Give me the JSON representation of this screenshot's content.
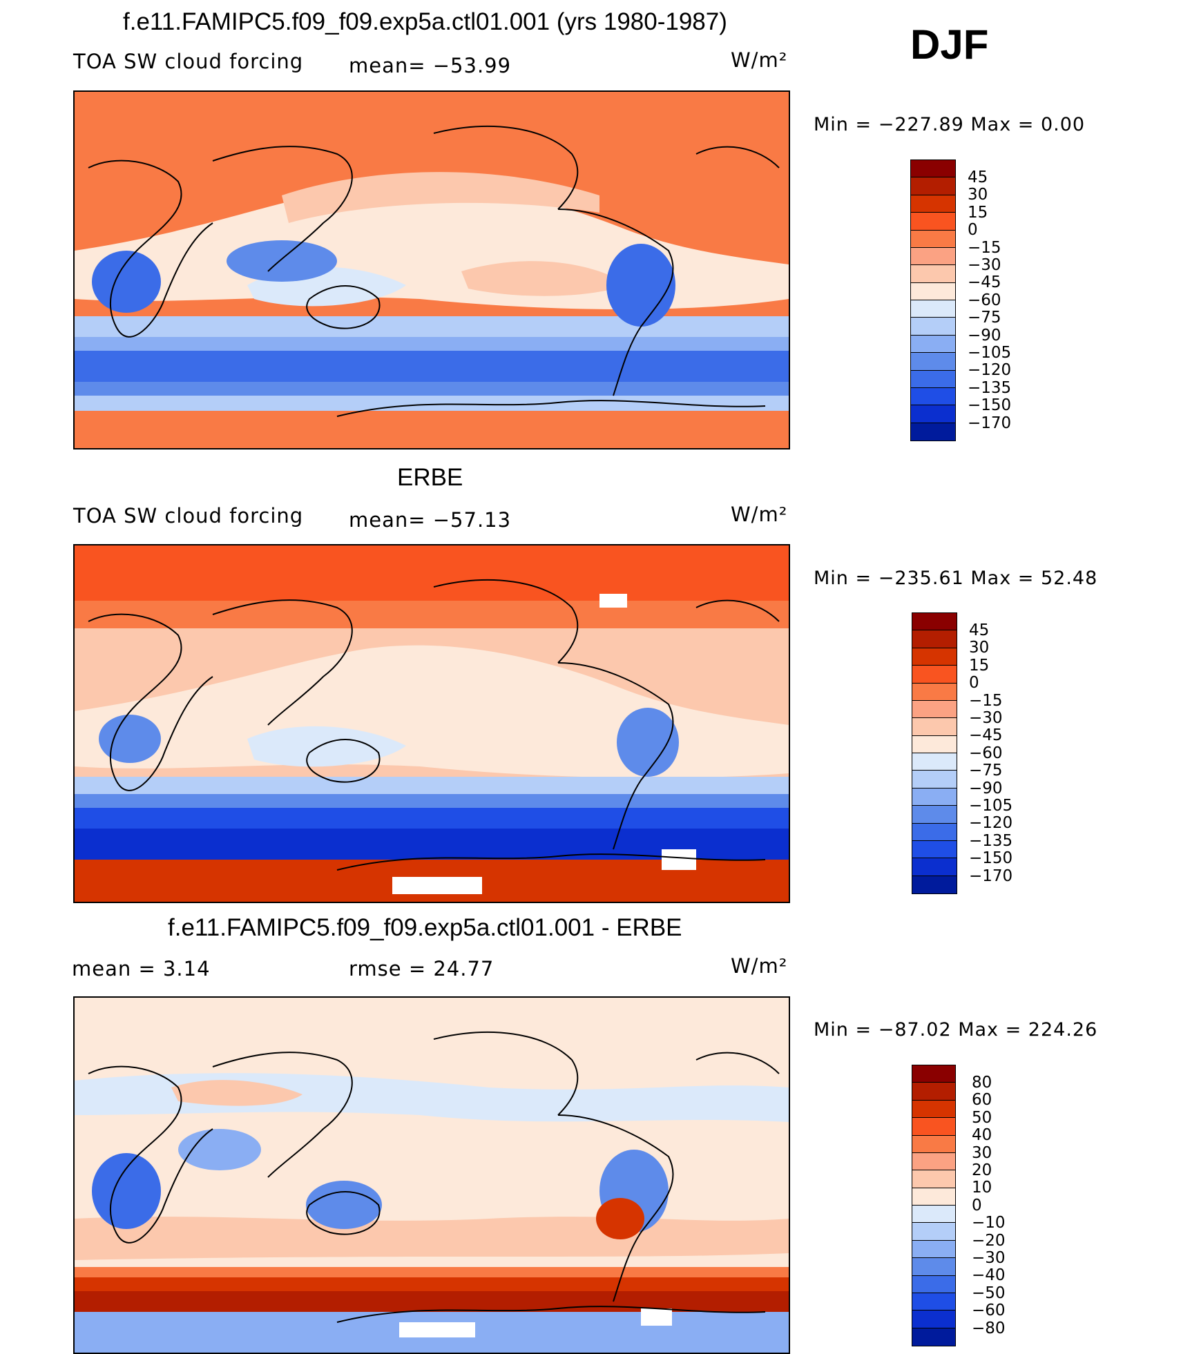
{
  "season": "DJF",
  "units": "W/m²",
  "colors": {
    "land_outline": "#000000",
    "palette_main": [
      "#8a0000",
      "#b31e00",
      "#d63400",
      "#f95420",
      "#f97a45",
      "#fba283",
      "#fcc8ad",
      "#fde9da",
      "#dbe9fa",
      "#b4cef8",
      "#8aaef3",
      "#5e8bea",
      "#3b6ce8",
      "#1f4ee6",
      "#0b2fcf",
      "#001b9c",
      "#000f6e"
    ],
    "palette_diff": [
      "#8a0000",
      "#b31e00",
      "#d63400",
      "#f95420",
      "#f97a45",
      "#fba283",
      "#fcc8ad",
      "#fde9da",
      "#dbe9fa",
      "#b4cef8",
      "#8aaef3",
      "#5e8bea",
      "#3b6ce8",
      "#1f4ee6",
      "#0b2fcf",
      "#001b9c"
    ]
  },
  "panels": [
    {
      "title": "f.e11.FAMIPC5.f09_f09.exp5a.ctl01.001 (yrs 1980-1987)",
      "left_label": "TOA SW cloud forcing",
      "center_label": "mean= −53.99",
      "units": "W/m²",
      "minmax": "Min  =  −227.89  Max  =     0.00",
      "colorbar_ticks": [
        "45",
        "30",
        "15",
        "0",
        "−15",
        "−30",
        "−45",
        "−60",
        "−75",
        "−90",
        "−105",
        "−120",
        "−135",
        "−150",
        "−170"
      ]
    },
    {
      "title": "ERBE",
      "left_label": "TOA SW cloud forcing",
      "center_label": "mean= −57.13",
      "units": "W/m²",
      "minmax": "Min  =  −235.61  Max  =   52.48",
      "colorbar_ticks": [
        "45",
        "30",
        "15",
        "0",
        "−15",
        "−30",
        "−45",
        "−60",
        "−75",
        "−90",
        "−105",
        "−120",
        "−135",
        "−150",
        "−170"
      ]
    },
    {
      "title": "f.e11.FAMIPC5.f09_f09.exp5a.ctl01.001 - ERBE",
      "left_label": "mean  =     3.14",
      "center_label": "rmse  =    24.77",
      "units": "W/m²",
      "minmax": "Min  =  −87.02  Max  =  224.26",
      "colorbar_ticks": [
        "80",
        "60",
        "50",
        "40",
        "30",
        "20",
        "10",
        "0",
        "−10",
        "−20",
        "−30",
        "−40",
        "−50",
        "−60",
        "−80"
      ]
    }
  ],
  "chart_data": [
    {
      "type": "heatmap",
      "title": "f.e11.FAMIPC5.f09_f09.exp5a.ctl01.001 (yrs 1980-1987)",
      "variable": "TOA SW cloud forcing",
      "units": "W/m²",
      "mean": -53.99,
      "min": -227.89,
      "max": 0.0,
      "levels": [
        45,
        30,
        15,
        0,
        -15,
        -30,
        -45,
        -60,
        -75,
        -90,
        -105,
        -120,
        -135,
        -150,
        -170
      ]
    },
    {
      "type": "heatmap",
      "title": "ERBE",
      "variable": "TOA SW cloud forcing",
      "units": "W/m²",
      "mean": -57.13,
      "min": -235.61,
      "max": 52.48,
      "levels": [
        45,
        30,
        15,
        0,
        -15,
        -30,
        -45,
        -60,
        -75,
        -90,
        -105,
        -120,
        -135,
        -150,
        -170
      ]
    },
    {
      "type": "heatmap",
      "title": "f.e11.FAMIPC5.f09_f09.exp5a.ctl01.001 - ERBE",
      "units": "W/m²",
      "mean": 3.14,
      "rmse": 24.77,
      "min": -87.02,
      "max": 224.26,
      "levels": [
        80,
        60,
        50,
        40,
        30,
        20,
        10,
        0,
        -10,
        -20,
        -30,
        -40,
        -50,
        -60,
        -80
      ]
    }
  ]
}
